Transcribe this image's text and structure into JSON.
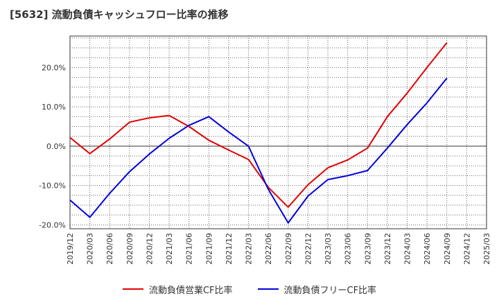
{
  "chart_data": {
    "type": "line",
    "title": "[5632]  流動負債キャッシュフロー比率の推移",
    "x": [
      "2019/12",
      "2020/03",
      "2020/06",
      "2020/09",
      "2020/12",
      "2021/03",
      "2021/06",
      "2021/09",
      "2021/12",
      "2022/03",
      "2022/06",
      "2022/09",
      "2022/12",
      "2023/03",
      "2023/06",
      "2023/09",
      "2023/12",
      "2024/03",
      "2024/06",
      "2024/09"
    ],
    "x_ticks": [
      "2019/12",
      "2020/03",
      "2020/06",
      "2020/09",
      "2020/12",
      "2021/03",
      "2021/06",
      "2021/09",
      "2021/12",
      "2022/03",
      "2022/06",
      "2022/09",
      "2022/12",
      "2023/03",
      "2023/06",
      "2023/09",
      "2023/12",
      "2024/03",
      "2024/06",
      "2024/09",
      "2024/12",
      "2025/03"
    ],
    "y_ticks": [
      20,
      10,
      0,
      -10,
      -20
    ],
    "y_tick_labels": [
      "20.0%",
      "10.0%",
      "0.0%",
      "-10.0%",
      "-20.0%"
    ],
    "ylim": [
      -21,
      28
    ],
    "grid": true,
    "legend_position": "bottom",
    "series": [
      {
        "name": "流動負債営業CF比率",
        "color": "#e00000",
        "values": [
          2.2,
          -1.9,
          1.8,
          6.1,
          7.2,
          7.8,
          5.0,
          1.5,
          -1.0,
          -3.4,
          -10.5,
          -15.5,
          -9.8,
          -5.5,
          -3.5,
          -0.5,
          7.5,
          13.5,
          20.0,
          26.3
        ]
      },
      {
        "name": "流動負債フリーCF比率",
        "color": "#0000dd",
        "values": [
          -13.7,
          -18.1,
          -12.0,
          -6.5,
          -2.0,
          2.0,
          5.3,
          7.5,
          3.6,
          0.0,
          -11.0,
          -19.5,
          -12.7,
          -8.5,
          -7.5,
          -6.2,
          -0.5,
          5.5,
          11.0,
          17.3
        ]
      }
    ]
  }
}
